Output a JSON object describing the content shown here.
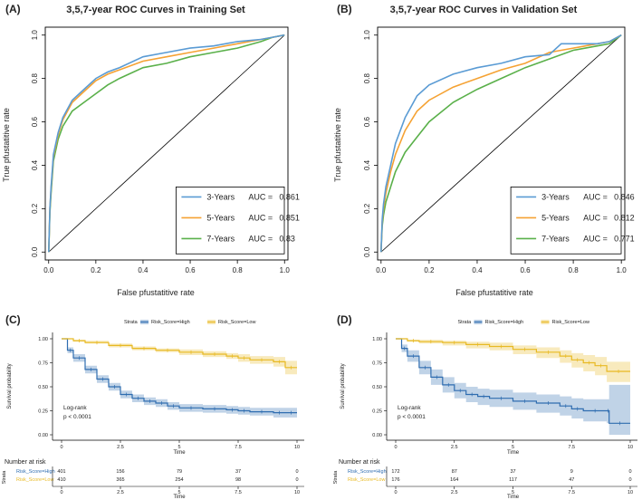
{
  "chart_data": [
    {
      "panel": "(A)",
      "type": "line",
      "title": "3,5,7-year ROC Curves in Training Set",
      "xlabel": "False pfustatitive rate",
      "ylabel": "True pfustatitive rate",
      "xlim": [
        0,
        1
      ],
      "ylim": [
        0,
        1
      ],
      "xticks": [
        "0.0",
        "0.2",
        "0.4",
        "0.6",
        "0.8",
        "1.0"
      ],
      "yticks": [
        "0.0",
        "0.2",
        "0.4",
        "0.6",
        "0.8",
        "1.0"
      ],
      "legend_position": "bottom-right",
      "series": [
        {
          "name": "3-Years",
          "auc_label": "AUC =",
          "auc": "0.861",
          "color": "#5a9bd4",
          "x": [
            0,
            0.005,
            0.01,
            0.02,
            0.04,
            0.06,
            0.1,
            0.15,
            0.2,
            0.25,
            0.3,
            0.4,
            0.5,
            0.6,
            0.7,
            0.8,
            0.9,
            0.95,
            1.0
          ],
          "y": [
            0,
            0.2,
            0.3,
            0.45,
            0.55,
            0.62,
            0.7,
            0.75,
            0.8,
            0.83,
            0.85,
            0.9,
            0.92,
            0.94,
            0.95,
            0.97,
            0.98,
            0.99,
            1.0
          ]
        },
        {
          "name": "5-Years",
          "auc_label": "AUC =",
          "auc": "0.851",
          "color": "#f5a233",
          "x": [
            0,
            0.005,
            0.01,
            0.02,
            0.04,
            0.06,
            0.1,
            0.15,
            0.2,
            0.25,
            0.3,
            0.4,
            0.5,
            0.6,
            0.7,
            0.8,
            0.9,
            0.95,
            1.0
          ],
          "y": [
            0,
            0.2,
            0.29,
            0.44,
            0.54,
            0.61,
            0.69,
            0.74,
            0.79,
            0.82,
            0.84,
            0.88,
            0.9,
            0.92,
            0.94,
            0.96,
            0.98,
            0.99,
            1.0
          ]
        },
        {
          "name": "7-Years",
          "auc_label": "AUC =",
          "auc": "0.83",
          "color": "#5ab04a",
          "x": [
            0,
            0.005,
            0.01,
            0.02,
            0.04,
            0.06,
            0.1,
            0.15,
            0.2,
            0.25,
            0.3,
            0.4,
            0.5,
            0.6,
            0.7,
            0.8,
            0.9,
            0.95,
            1.0
          ],
          "y": [
            0,
            0.18,
            0.27,
            0.42,
            0.52,
            0.58,
            0.65,
            0.69,
            0.73,
            0.77,
            0.8,
            0.85,
            0.87,
            0.9,
            0.92,
            0.94,
            0.97,
            0.99,
            1.0
          ]
        }
      ]
    },
    {
      "panel": "(B)",
      "type": "line",
      "title": "3,5,7-year ROC Curves in Validation Set",
      "xlabel": "False pfustatitive rate",
      "ylabel": "True pfustatitive rate",
      "xlim": [
        0,
        1
      ],
      "ylim": [
        0,
        1
      ],
      "xticks": [
        "0.0",
        "0.2",
        "0.4",
        "0.6",
        "0.8",
        "1.0"
      ],
      "yticks": [
        "0.0",
        "0.2",
        "0.4",
        "0.6",
        "0.8",
        "1.0"
      ],
      "legend_position": "bottom-right",
      "series": [
        {
          "name": "3-Years",
          "auc_label": "AUC =",
          "auc": "0.846",
          "color": "#5a9bd4",
          "x": [
            0,
            0.005,
            0.01,
            0.02,
            0.04,
            0.06,
            0.1,
            0.15,
            0.2,
            0.3,
            0.4,
            0.5,
            0.6,
            0.7,
            0.75,
            0.8,
            0.9,
            0.95,
            1.0
          ],
          "y": [
            0,
            0.15,
            0.22,
            0.3,
            0.4,
            0.5,
            0.62,
            0.72,
            0.77,
            0.82,
            0.85,
            0.87,
            0.9,
            0.91,
            0.96,
            0.96,
            0.96,
            0.97,
            1.0
          ]
        },
        {
          "name": "5-Years",
          "auc_label": "AUC =",
          "auc": "0.812",
          "color": "#f5a233",
          "x": [
            0,
            0.005,
            0.01,
            0.02,
            0.04,
            0.06,
            0.1,
            0.15,
            0.2,
            0.3,
            0.4,
            0.5,
            0.6,
            0.7,
            0.8,
            0.9,
            0.95,
            1.0
          ],
          "y": [
            0,
            0.14,
            0.2,
            0.27,
            0.37,
            0.45,
            0.56,
            0.65,
            0.7,
            0.76,
            0.8,
            0.84,
            0.87,
            0.92,
            0.94,
            0.96,
            0.97,
            1.0
          ]
        },
        {
          "name": "7-Years",
          "auc_label": "AUC =",
          "auc": "0.771",
          "color": "#5ab04a",
          "x": [
            0,
            0.005,
            0.01,
            0.02,
            0.04,
            0.06,
            0.1,
            0.15,
            0.2,
            0.3,
            0.4,
            0.5,
            0.6,
            0.7,
            0.8,
            0.9,
            0.95,
            1.0
          ],
          "y": [
            0,
            0.12,
            0.17,
            0.23,
            0.3,
            0.37,
            0.46,
            0.53,
            0.6,
            0.69,
            0.75,
            0.8,
            0.85,
            0.89,
            0.93,
            0.95,
            0.96,
            1.0
          ]
        }
      ]
    },
    {
      "panel": "(C)",
      "type": "line",
      "subtype": "kaplan-meier",
      "strata_label": "Strata",
      "xlabel": "Time",
      "ylabel": "Survival probability",
      "xlim": [
        0,
        10
      ],
      "ylim": [
        0,
        1
      ],
      "xticks": [
        "0",
        "2.5",
        "5",
        "7.5",
        "10"
      ],
      "yticks": [
        "0.00",
        "0.25",
        "0.50",
        "0.75",
        "1.00"
      ],
      "annotation": [
        "Log-rank",
        "p < 0.0001"
      ],
      "series": [
        {
          "name": "Risk_Score=High",
          "color": "#2f6db0",
          "x": [
            0,
            0.25,
            0.5,
            1,
            1.5,
            2,
            2.5,
            3,
            3.5,
            4,
            4.5,
            5,
            6,
            7,
            7.5,
            8,
            9,
            9.5,
            10
          ],
          "y": [
            1.0,
            0.88,
            0.8,
            0.68,
            0.58,
            0.5,
            0.42,
            0.38,
            0.35,
            0.33,
            0.3,
            0.28,
            0.27,
            0.26,
            0.25,
            0.24,
            0.23,
            0.23,
            0.23
          ],
          "lower": [
            1.0,
            0.85,
            0.76,
            0.64,
            0.54,
            0.46,
            0.38,
            0.34,
            0.31,
            0.29,
            0.26,
            0.24,
            0.23,
            0.22,
            0.21,
            0.2,
            0.18,
            0.18,
            0.18
          ],
          "upper": [
            1.0,
            0.91,
            0.84,
            0.72,
            0.62,
            0.54,
            0.46,
            0.42,
            0.39,
            0.37,
            0.34,
            0.32,
            0.31,
            0.3,
            0.29,
            0.28,
            0.28,
            0.28,
            0.28
          ]
        },
        {
          "name": "Risk_Score=Low",
          "color": "#e8b923",
          "x": [
            0,
            0.5,
            1,
            2,
            3,
            4,
            5,
            6,
            7,
            7.5,
            8,
            9,
            9.5,
            10
          ],
          "y": [
            1.0,
            0.98,
            0.96,
            0.93,
            0.9,
            0.88,
            0.86,
            0.84,
            0.82,
            0.8,
            0.78,
            0.76,
            0.7,
            0.7
          ],
          "lower": [
            1.0,
            0.97,
            0.95,
            0.91,
            0.88,
            0.86,
            0.83,
            0.81,
            0.79,
            0.76,
            0.74,
            0.71,
            0.63,
            0.63
          ],
          "upper": [
            1.0,
            0.99,
            0.98,
            0.95,
            0.92,
            0.9,
            0.89,
            0.87,
            0.85,
            0.84,
            0.82,
            0.81,
            0.77,
            0.77
          ]
        }
      ],
      "risk_table": {
        "title": "Number at risk",
        "axis_label": "Strata",
        "times": [
          "0",
          "2.5",
          "5",
          "7.5",
          "10"
        ],
        "xlabel": "Time",
        "rows": [
          {
            "name": "Risk_Score=High",
            "color": "#2f6db0",
            "counts": [
              "401",
              "156",
              "79",
              "37",
              "0"
            ]
          },
          {
            "name": "Risk_Score=Low",
            "color": "#e8b923",
            "counts": [
              "410",
              "365",
              "254",
              "98",
              "0"
            ]
          }
        ]
      }
    },
    {
      "panel": "(D)",
      "type": "line",
      "subtype": "kaplan-meier",
      "strata_label": "Strata",
      "xlabel": "Time",
      "ylabel": "Survival probability",
      "xlim": [
        0,
        10
      ],
      "ylim": [
        0,
        1
      ],
      "xticks": [
        "0",
        "2.5",
        "5",
        "7.5",
        "10"
      ],
      "yticks": [
        "0.00",
        "0.25",
        "0.50",
        "0.75",
        "1.00"
      ],
      "annotation": [
        "Log-rank",
        "p < 0.0001"
      ],
      "series": [
        {
          "name": "Risk_Score=High",
          "color": "#2f6db0",
          "x": [
            0,
            0.25,
            0.5,
            1,
            1.5,
            2,
            2.5,
            3,
            3.5,
            4,
            5,
            6,
            7,
            7.5,
            8,
            9,
            9.1,
            10
          ],
          "y": [
            1.0,
            0.9,
            0.82,
            0.7,
            0.6,
            0.52,
            0.46,
            0.42,
            0.4,
            0.38,
            0.35,
            0.33,
            0.3,
            0.27,
            0.25,
            0.25,
            0.12,
            0.12
          ],
          "lower": [
            1.0,
            0.86,
            0.76,
            0.63,
            0.52,
            0.44,
            0.38,
            0.34,
            0.31,
            0.29,
            0.26,
            0.23,
            0.2,
            0.17,
            0.14,
            0.12,
            0.0,
            0.0
          ],
          "upper": [
            1.0,
            0.94,
            0.88,
            0.77,
            0.68,
            0.6,
            0.54,
            0.5,
            0.48,
            0.47,
            0.44,
            0.42,
            0.4,
            0.38,
            0.37,
            0.37,
            0.52,
            0.52
          ]
        },
        {
          "name": "Risk_Score=Low",
          "color": "#e8b923",
          "x": [
            0,
            0.5,
            1,
            2,
            3,
            4,
            5,
            6,
            7,
            7.5,
            8,
            8.5,
            9,
            10
          ],
          "y": [
            1.0,
            0.98,
            0.97,
            0.96,
            0.94,
            0.92,
            0.89,
            0.86,
            0.82,
            0.78,
            0.75,
            0.72,
            0.66,
            0.66
          ],
          "lower": [
            1.0,
            0.97,
            0.95,
            0.93,
            0.9,
            0.88,
            0.84,
            0.8,
            0.75,
            0.7,
            0.66,
            0.62,
            0.55,
            0.55
          ],
          "upper": [
            1.0,
            0.99,
            0.99,
            0.98,
            0.97,
            0.96,
            0.93,
            0.91,
            0.88,
            0.85,
            0.83,
            0.81,
            0.76,
            0.76
          ]
        }
      ],
      "risk_table": {
        "title": "Number at risk",
        "axis_label": "Strata",
        "times": [
          "0",
          "2.5",
          "5",
          "7.5",
          "10"
        ],
        "xlabel": "Time",
        "rows": [
          {
            "name": "Risk_Score=High",
            "color": "#2f6db0",
            "counts": [
              "172",
              "87",
              "37",
              "9",
              "0"
            ]
          },
          {
            "name": "Risk_Score=Low",
            "color": "#e8b923",
            "counts": [
              "176",
              "164",
              "117",
              "47",
              "0"
            ]
          }
        ]
      }
    }
  ]
}
